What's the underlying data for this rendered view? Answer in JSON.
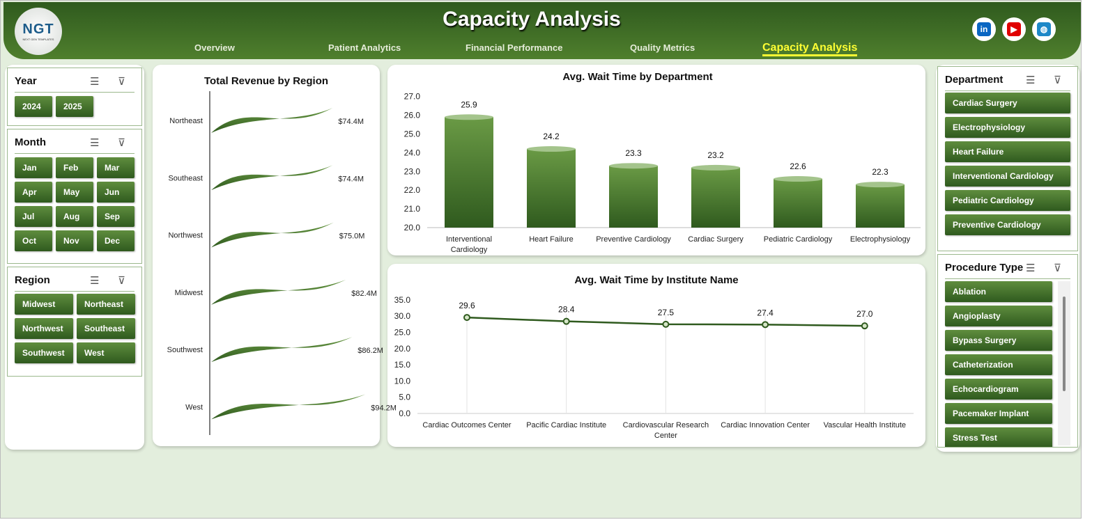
{
  "header": {
    "title": "Capacity Analysis",
    "logo_text": "NGT",
    "logo_sub": "NEXT GEN TEMPLATES",
    "tabs": [
      {
        "label": "Overview"
      },
      {
        "label": "Patient Analytics"
      },
      {
        "label": "Financial Performance"
      },
      {
        "label": "Quality Metrics"
      },
      {
        "label": "Capacity Analysis",
        "active": true
      }
    ],
    "social": [
      {
        "icon": "linkedin-icon",
        "label": "in",
        "color": "#0a66c2"
      },
      {
        "icon": "youtube-icon",
        "label": "▶",
        "color": "#e00000"
      },
      {
        "icon": "globe-icon",
        "label": "◍",
        "color": "#1e88c8"
      }
    ]
  },
  "slicers": {
    "year": {
      "title": "Year",
      "items": [
        "2024",
        "2025"
      ]
    },
    "month": {
      "title": "Month",
      "items": [
        "Jan",
        "Feb",
        "Mar",
        "Apr",
        "May",
        "Jun",
        "Jul",
        "Aug",
        "Sep",
        "Oct",
        "Nov",
        "Dec"
      ]
    },
    "region": {
      "title": "Region",
      "items": [
        "Midwest",
        "Northeast",
        "Northwest",
        "Southeast",
        "Southwest",
        "West"
      ]
    },
    "department": {
      "title": "Department",
      "items": [
        "Cardiac Surgery",
        "Electrophysiology",
        "Heart Failure",
        "Interventional Cardiology",
        "Pediatric Cardiology",
        "Preventive Cardiology"
      ]
    },
    "procedure": {
      "title": "Procedure Type",
      "items": [
        "Ablation",
        "Angioplasty",
        "Bypass Surgery",
        "Catheterization",
        "Echocardiogram",
        "Pacemaker Implant",
        "Stress Test"
      ]
    }
  },
  "colors": {
    "accent": "#3f6f25",
    "header": "#2f5a1e",
    "highlight": "#ffff33"
  },
  "chart_data": [
    {
      "type": "bar",
      "orientation": "horizontal",
      "title": "Total Revenue  by Region",
      "categories": [
        "Northeast",
        "Southeast",
        "Northwest",
        "Midwest",
        "Southwest",
        "West"
      ],
      "values": [
        74.4,
        74.4,
        75.0,
        82.4,
        86.2,
        94.2
      ],
      "labels": [
        "$74.4M",
        "$74.4M",
        "$75.0M",
        "$82.4M",
        "$86.2M",
        "$94.2M"
      ],
      "unit": "$M",
      "grid": false
    },
    {
      "type": "bar",
      "title": "Avg. Wait Time by Department",
      "categories": [
        "Interventional Cardiology",
        "Heart Failure",
        "Preventive Cardiology",
        "Cardiac Surgery",
        "Pediatric Cardiology",
        "Electrophysiology"
      ],
      "values": [
        25.9,
        24.2,
        23.3,
        23.2,
        22.6,
        22.3
      ],
      "ylim": [
        20,
        27
      ],
      "yticks": [
        "20.0",
        "21.0",
        "22.0",
        "23.0",
        "24.0",
        "25.0",
        "26.0",
        "27.0"
      ],
      "grid": false
    },
    {
      "type": "line",
      "title": "Avg. Wait Time by Institute Name",
      "categories": [
        "Cardiac Outcomes Center",
        "Pacific Cardiac Institute",
        "Cardiovascular Research Center",
        "Cardiac Innovation Center",
        "Vascular Health Institute"
      ],
      "values": [
        29.6,
        28.4,
        27.5,
        27.4,
        27.0
      ],
      "ylim": [
        0,
        35
      ],
      "yticks": [
        "0.0",
        "5.0",
        "10.0",
        "15.0",
        "20.0",
        "25.0",
        "30.0",
        "35.0"
      ],
      "grid": "vertical"
    }
  ]
}
